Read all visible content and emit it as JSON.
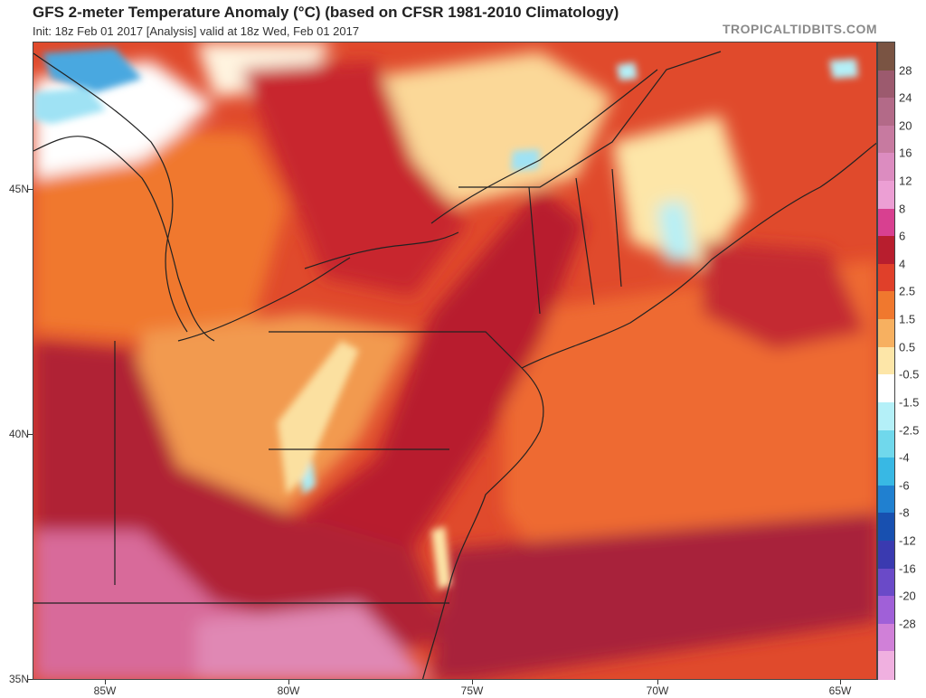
{
  "header": {
    "title": "GFS 2-meter Temperature Anomaly (°C) (based on CFSR 1981-2010 Climatology)",
    "subtitle": "Init: 18z Feb 01 2017   [Analysis]   valid at 18z Wed, Feb 01 2017",
    "brand": "TROPICALTIDBITS.COM"
  },
  "axes": {
    "lat_labels": [
      "45N",
      "40N",
      "35N"
    ],
    "lon_labels": [
      "85W",
      "80W",
      "75W",
      "70W",
      "65W"
    ]
  },
  "colorbar": {
    "labels": [
      "28",
      "24",
      "20",
      "16",
      "12",
      "8",
      "6",
      "4",
      "2.5",
      "1.5",
      "0.5",
      "-0.5",
      "-1.5",
      "-2.5",
      "-4",
      "-6",
      "-8",
      "-12",
      "-16",
      "-20",
      "-28"
    ],
    "colors": [
      "#7a5443",
      "#9c5a6e",
      "#b36a88",
      "#c77aa0",
      "#dc8cc0",
      "#ec9fd4",
      "#d84090",
      "#b81e2e",
      "#e0402a",
      "#f0782e",
      "#f7b060",
      "#fde6a8",
      "#ffffff",
      "#b4f0f8",
      "#70d8ec",
      "#38b8e4",
      "#2080d0",
      "#1850b0",
      "#3a3ab0",
      "#6a4ac8",
      "#a060d8",
      "#d080d8",
      "#f0b0e0"
    ]
  },
  "map": {
    "fill_colors": {
      "warm_base": "#e0402a",
      "hot": "#b81e2e",
      "very_hot": "#a0203a",
      "pink_hot": "#d86a9a",
      "mild": "#f0782e",
      "light": "#f7b060",
      "pale": "#fde6a8",
      "neutral": "#ffffff",
      "cold_light": "#b4f0f8",
      "cold": "#70d8ec",
      "cold_dark": "#2080d0"
    }
  }
}
